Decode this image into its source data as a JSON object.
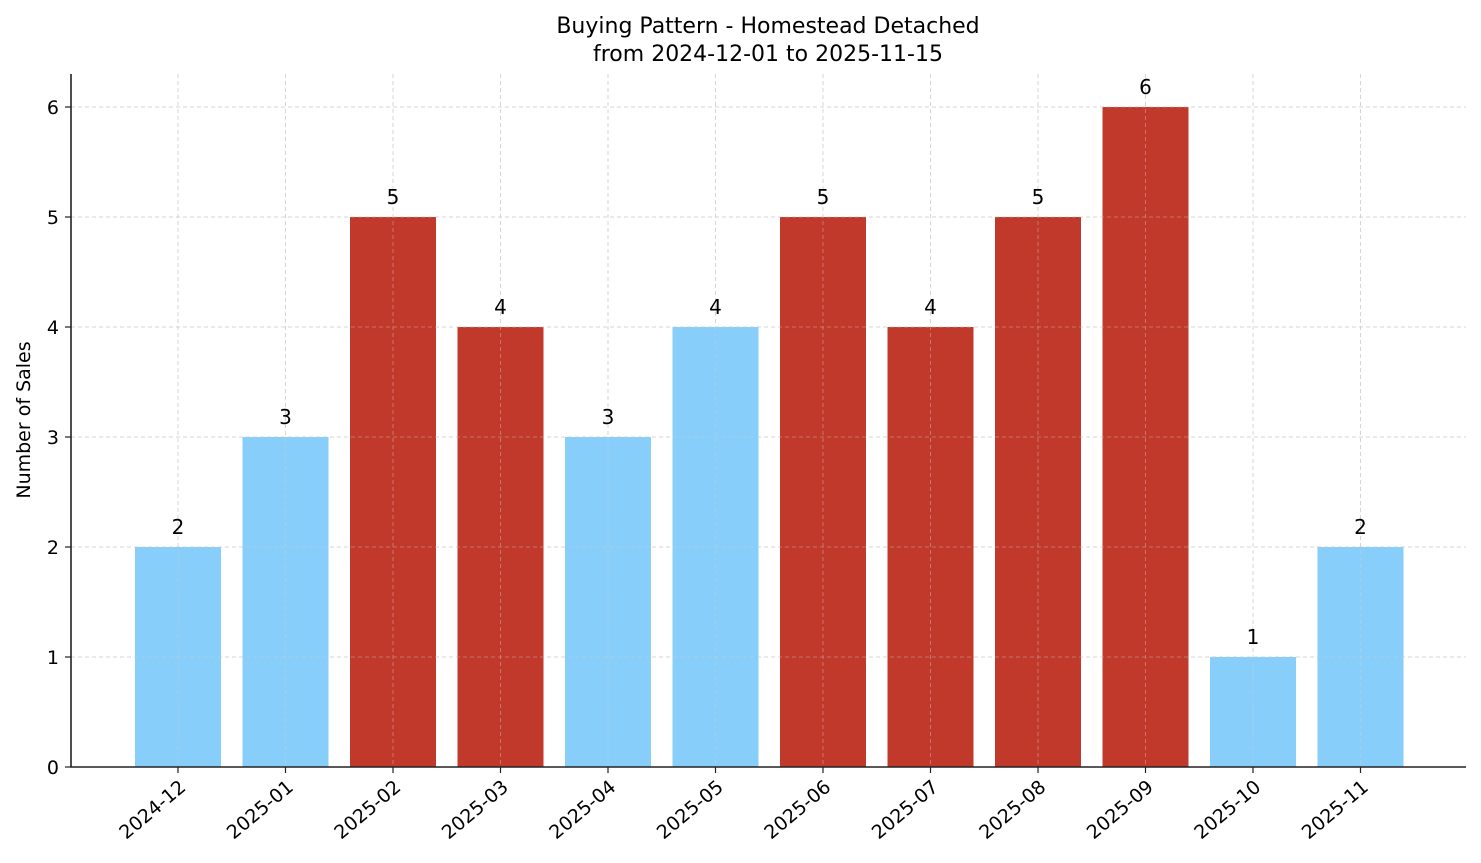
{
  "chart_data": {
    "type": "bar",
    "title": "Buying Pattern - Homestead Detached",
    "subtitle": "from 2024-12-01 to 2025-11-15",
    "xlabel": "",
    "ylabel": "Number of Sales",
    "ylim": [
      0,
      6.3
    ],
    "yticks": [
      0,
      1,
      2,
      3,
      4,
      5,
      6
    ],
    "grid": true,
    "legend": null,
    "categories": [
      "2024-12",
      "2025-01",
      "2025-02",
      "2025-03",
      "2025-04",
      "2025-05",
      "2025-06",
      "2025-07",
      "2025-08",
      "2025-09",
      "2025-10",
      "2025-11"
    ],
    "values": [
      2,
      3,
      5,
      4,
      3,
      4,
      5,
      4,
      5,
      6,
      1,
      2
    ],
    "bar_colors": [
      "#87CEFA",
      "#87CEFA",
      "#C0392B",
      "#C0392B",
      "#87CEFA",
      "#87CEFA",
      "#C0392B",
      "#C0392B",
      "#C0392B",
      "#C0392B",
      "#87CEFA",
      "#87CEFA"
    ],
    "data_labels": [
      "2",
      "3",
      "5",
      "4",
      "3",
      "4",
      "5",
      "4",
      "5",
      "6",
      "1",
      "2"
    ]
  },
  "colors": {
    "low": "#87CEFA",
    "high": "#C0392B",
    "grid": "#d0d0d0",
    "axis": "#222222"
  }
}
